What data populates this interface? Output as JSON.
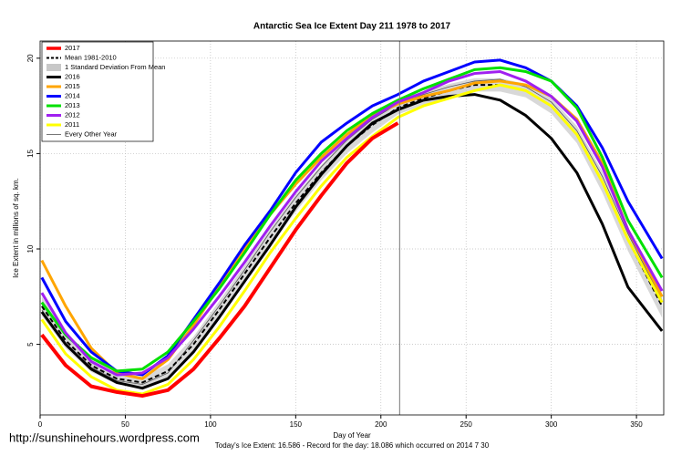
{
  "chart_data": {
    "type": "line",
    "title": "Antarctic Sea Ice Extent Day 211 1978 to 2017",
    "x_label": "Day of Year",
    "y_label": "Ice Extent in millions of sq. km.",
    "footer": "Today's Ice Extent: 16.586  - Record for the day: 18.086 which occurred on 2014 7 30",
    "watermark": "http://sunshinehours.wordpress.com",
    "x": [
      1,
      15,
      30,
      45,
      60,
      75,
      90,
      105,
      120,
      135,
      150,
      165,
      180,
      195,
      210,
      225,
      240,
      255,
      270,
      285,
      300,
      315,
      330,
      345,
      365
    ],
    "xlim": [
      0,
      366
    ],
    "ylim": [
      1.3,
      20.9
    ],
    "xticks": [
      0,
      50,
      100,
      150,
      200,
      250,
      300,
      350
    ],
    "yticks": [
      5,
      10,
      15,
      20
    ],
    "grid": true,
    "marker_day": 211,
    "legend": "upper left",
    "series": [
      {
        "name": "2017",
        "color": "#ff0000",
        "width": 4,
        "values": [
          5.5,
          3.9,
          2.8,
          2.5,
          2.3,
          2.6,
          3.7,
          5.3,
          7.0,
          9.0,
          11.0,
          12.8,
          14.5,
          15.8,
          16.6,
          null,
          null,
          null,
          null,
          null,
          null,
          null,
          null,
          null,
          null
        ]
      },
      {
        "name": "Mean 1981-2010",
        "color": "#000000",
        "width": 2,
        "dashed": true,
        "values": [
          7.0,
          5.2,
          3.9,
          3.2,
          3.0,
          3.6,
          5.0,
          6.8,
          8.7,
          10.6,
          12.4,
          14.0,
          15.4,
          16.5,
          17.4,
          17.9,
          18.3,
          18.6,
          18.6,
          18.3,
          17.5,
          16.0,
          13.5,
          10.5,
          7.0
        ]
      },
      {
        "name": "1 Standard Deviation From Mean",
        "color": "#c8c8c8",
        "band": true,
        "values": [
          0.5,
          0.4,
          0.35,
          0.3,
          0.3,
          0.35,
          0.4,
          0.45,
          0.45,
          0.45,
          0.45,
          0.4,
          0.4,
          0.4,
          0.35,
          0.35,
          0.35,
          0.35,
          0.35,
          0.35,
          0.4,
          0.45,
          0.55,
          0.6,
          0.6
        ]
      },
      {
        "name": "2016",
        "color": "#000000",
        "width": 3,
        "values": [
          6.7,
          5.0,
          3.7,
          3.0,
          2.7,
          3.2,
          4.6,
          6.4,
          8.3,
          10.2,
          12.2,
          13.9,
          15.4,
          16.6,
          17.3,
          17.8,
          18.0,
          18.1,
          17.8,
          17.0,
          15.8,
          14.0,
          11.3,
          8.0,
          5.7
        ]
      },
      {
        "name": "2015",
        "color": "#ffa500",
        "width": 3,
        "values": [
          9.4,
          7.0,
          4.8,
          3.5,
          3.2,
          4.2,
          6.0,
          8.0,
          10.0,
          11.8,
          13.4,
          14.8,
          16.0,
          17.0,
          17.6,
          18.0,
          18.3,
          18.7,
          18.8,
          18.6,
          18.0,
          16.8,
          14.5,
          11.0,
          7.5
        ]
      },
      {
        "name": "2014",
        "color": "#0000ff",
        "width": 3,
        "values": [
          8.5,
          6.2,
          4.6,
          3.6,
          3.4,
          4.4,
          6.3,
          8.2,
          10.2,
          12.0,
          14.0,
          15.6,
          16.6,
          17.5,
          18.1,
          18.8,
          19.3,
          19.8,
          19.9,
          19.5,
          18.8,
          17.5,
          15.3,
          12.5,
          9.5
        ]
      },
      {
        "name": "2013",
        "color": "#00e000",
        "width": 3,
        "values": [
          7.2,
          5.5,
          4.3,
          3.6,
          3.7,
          4.6,
          6.2,
          7.9,
          9.8,
          11.8,
          13.6,
          15.0,
          16.2,
          17.1,
          17.8,
          18.4,
          18.9,
          19.4,
          19.5,
          19.3,
          18.8,
          17.4,
          14.8,
          11.5,
          8.5
        ]
      },
      {
        "name": "2012",
        "color": "#a020f0",
        "width": 3,
        "values": [
          7.7,
          5.6,
          4.1,
          3.4,
          3.5,
          4.3,
          5.8,
          7.5,
          9.3,
          11.2,
          13.0,
          14.6,
          15.8,
          16.9,
          17.7,
          18.2,
          18.8,
          19.2,
          19.3,
          18.8,
          18.0,
          16.7,
          14.3,
          11.0,
          7.8
        ]
      },
      {
        "name": "2011",
        "color": "#ffff00",
        "width": 3,
        "values": [
          6.3,
          4.5,
          3.3,
          2.6,
          2.4,
          2.9,
          4.2,
          5.9,
          7.8,
          9.8,
          11.6,
          13.3,
          14.8,
          15.9,
          16.9,
          17.5,
          17.9,
          18.3,
          18.6,
          18.3,
          17.5,
          16.0,
          13.5,
          10.5,
          7.2
        ]
      },
      {
        "name": "Every Other Year",
        "color": "#555555",
        "width": 0.8,
        "values": [
          6.8,
          5.0,
          3.8,
          3.1,
          2.9,
          3.5,
          5.2,
          7.0,
          8.9,
          10.9,
          12.7,
          14.3,
          15.7,
          16.8,
          17.6,
          18.1,
          18.5,
          18.8,
          18.9,
          18.5,
          17.7,
          16.2,
          13.8,
          10.8,
          7.3
        ]
      }
    ]
  }
}
